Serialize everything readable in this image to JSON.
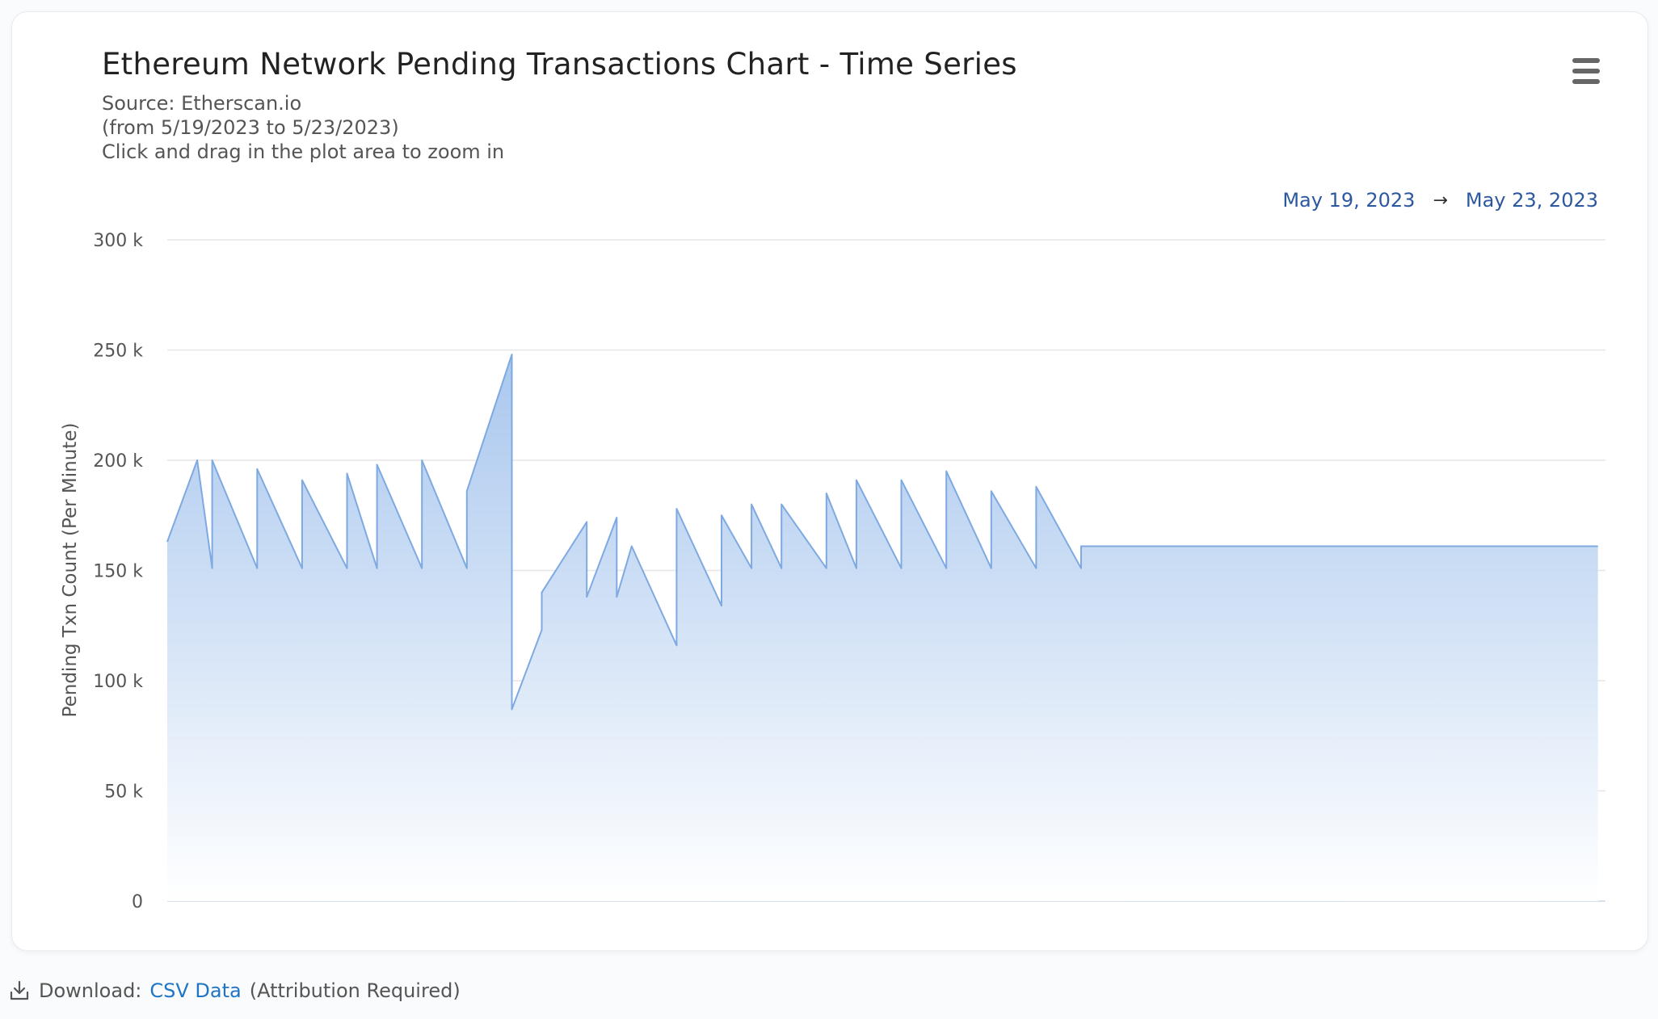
{
  "chart_header": {
    "title": "Ethereum Network Pending Transactions Chart - Time Series",
    "source_line": "Source: Etherscan.io",
    "range_line": "(from 5/19/2023 to 5/23/2023)",
    "hint_line": "Click and drag in the plot area to zoom in",
    "menu_icon": "hamburger-menu-icon"
  },
  "range_selector": {
    "from": "May 19, 2023",
    "arrow": "→",
    "to": "May 23, 2023"
  },
  "footer": {
    "icon": "download-icon",
    "prefix": "Download:",
    "link_label": "CSV Data",
    "suffix": "(Attribution Required)"
  },
  "colors": {
    "series_line": "#7ea9e1",
    "series_fill_top": "#a9c7ee",
    "series_fill_bottom": "#ffffff",
    "gridline": "#e6e6e6",
    "range_text": "#2c58a0",
    "link": "#1f74c4"
  },
  "chart_data": {
    "type": "area",
    "title": "Ethereum Network Pending Transactions Chart - Time Series",
    "xlabel": "",
    "ylabel": "Pending Txn Count (Per Minute)",
    "ylim": [
      0,
      300000
    ],
    "yticks": [
      0,
      50000,
      100000,
      150000,
      200000,
      250000,
      300000
    ],
    "ytick_labels": [
      "0",
      "50 k",
      "100 k",
      "150 k",
      "200 k",
      "250 k",
      "300 k"
    ],
    "xlim": [
      "2023-05-19 00:00",
      "2023-05-23 00:00"
    ],
    "grid": true,
    "legend": "none",
    "series": [
      {
        "x": [
          "2023-05-19 00:00",
          "2023-05-19 02:00",
          "2023-05-19 03:00",
          "2023-05-19 03:00",
          "2023-05-19 06:00",
          "2023-05-19 06:00",
          "2023-05-19 09:00",
          "2023-05-19 09:00",
          "2023-05-19 12:00",
          "2023-05-19 12:00",
          "2023-05-19 14:00",
          "2023-05-19 14:00",
          "2023-05-19 17:00",
          "2023-05-19 17:00",
          "2023-05-19 20:00",
          "2023-05-19 20:00",
          "2023-05-19 23:00",
          "2023-05-19 23:00",
          "2023-05-20 01:00",
          "2023-05-20 01:00",
          "2023-05-20 04:00",
          "2023-05-20 04:00",
          "2023-05-20 06:00",
          "2023-05-20 06:00",
          "2023-05-20 07:00",
          "2023-05-20 10:00",
          "2023-05-20 10:00",
          "2023-05-20 13:00",
          "2023-05-20 13:00",
          "2023-05-20 15:00",
          "2023-05-20 15:00",
          "2023-05-20 17:00",
          "2023-05-20 17:00",
          "2023-05-20 20:00",
          "2023-05-20 20:00",
          "2023-05-20 22:00",
          "2023-05-20 22:00",
          "2023-05-21 01:00",
          "2023-05-21 01:00",
          "2023-05-21 04:00",
          "2023-05-21 04:00",
          "2023-05-21 07:00",
          "2023-05-21 07:00",
          "2023-05-21 10:00",
          "2023-05-21 10:00",
          "2023-05-21 13:00",
          "2023-05-21 13:00",
          "2023-05-21 16:00",
          "2023-05-21 16:00",
          "2023-05-21 19:00",
          "2023-05-21 19:00",
          "2023-05-21 22:00",
          "2023-05-21 22:00",
          "2023-05-22 01:00",
          "2023-05-22 01:00",
          "2023-05-22 04:00",
          "2023-05-22 04:00",
          "2023-05-22 07:00",
          "2023-05-22 07:00",
          "2023-05-22 10:00",
          "2023-05-22 10:00",
          "2023-05-22 13:00",
          "2023-05-22 13:00",
          "2023-05-22 16:00",
          "2023-05-22 16:00",
          "2023-05-22 19:00",
          "2023-05-22 19:00",
          "2023-05-22 22:00",
          "2023-05-22 22:00",
          "2023-05-22 23:30"
        ],
        "values": [
          163000,
          200000,
          151000,
          200000,
          151000,
          196000,
          151000,
          191000,
          151000,
          194000,
          151000,
          198000,
          151000,
          200000,
          151000,
          186000,
          248000,
          87000,
          123000,
          140000,
          172000,
          138000,
          174000,
          138000,
          161000,
          116000,
          178000,
          134000,
          175000,
          151000,
          180000,
          151000,
          180000,
          151000,
          185000,
          151000,
          191000,
          151000,
          191000,
          151000,
          195000,
          151000,
          186000,
          151000,
          188000,
          151000,
          161000,
          161000,
          161000,
          161000,
          161000,
          161000,
          161000,
          161000,
          161000,
          161000,
          161000,
          161000,
          161000,
          161000,
          161000,
          161000,
          161000,
          161000,
          161000,
          161000,
          161000,
          161000,
          161000,
          161000
        ]
      }
    ]
  }
}
